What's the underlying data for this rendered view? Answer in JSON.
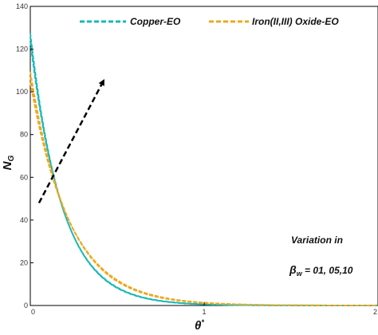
{
  "chart_data": {
    "type": "line",
    "xlabel": "θ",
    "xlabel_sup": "*",
    "ylabel": "N",
    "ylabel_sub": "G",
    "xlim": [
      0,
      2
    ],
    "ylim": [
      0,
      140
    ],
    "xticks": [
      0,
      1,
      2
    ],
    "yticks": [
      0,
      20,
      40,
      60,
      80,
      100,
      120,
      140
    ],
    "grid": false,
    "legend_position": "top",
    "legend": [
      {
        "label": "Copper-EO",
        "color": "#1ab8b8"
      },
      {
        "label": "Iron(II,III) Oxide-EO",
        "color": "#f0a81c"
      }
    ],
    "annotation": {
      "line1": "Variation in",
      "beta_symbol": "β",
      "beta_sub": "w",
      "values_text": " = 01, 05,10"
    },
    "arrow": {
      "from": [
        0.05,
        48
      ],
      "to": [
        0.42,
        105
      ]
    },
    "series": [
      {
        "name": "Copper-EO",
        "color": "#1ab8b8",
        "A": 127.5,
        "k": 5.5
      },
      {
        "name": "Copper-EO",
        "color": "#1ab8b8",
        "A": 125.5,
        "k": 5.43
      },
      {
        "name": "Copper-EO",
        "color": "#1ab8b8",
        "A": 123.5,
        "k": 5.36
      },
      {
        "name": "Iron(II,III) Oxide-EO",
        "color": "#f0a81c",
        "A": 109.5,
        "k": 4.55
      },
      {
        "name": "Iron(II,III) Oxide-EO",
        "color": "#f0a81c",
        "A": 107.0,
        "k": 4.45
      },
      {
        "name": "Iron(II,III) Oxide-EO",
        "color": "#f0a81c",
        "A": 104.5,
        "k": 4.35
      }
    ]
  }
}
